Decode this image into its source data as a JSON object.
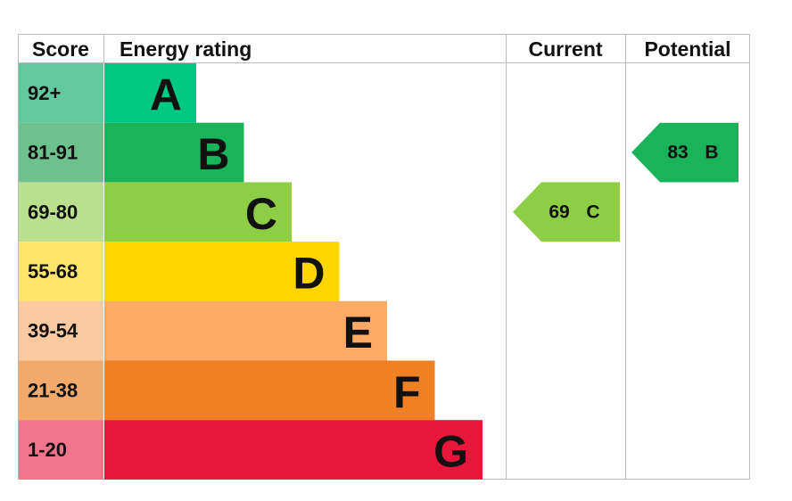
{
  "header": {
    "score": "Score",
    "rating": "Energy rating",
    "current": "Current",
    "potential": "Potential"
  },
  "rows": [
    {
      "range": "92+",
      "letter": "A",
      "color": "#00c781",
      "score_color": "#63c7a0"
    },
    {
      "range": "81-91",
      "letter": "B",
      "color": "#19b459",
      "score_color": "#6dc18c"
    },
    {
      "range": "69-80",
      "letter": "C",
      "color": "#8dce46",
      "score_color": "#b9e08f"
    },
    {
      "range": "55-68",
      "letter": "D",
      "color": "#ffd500",
      "score_color": "#ffe56b"
    },
    {
      "range": "39-54",
      "letter": "E",
      "color": "#fcaa65",
      "score_color": "#fdcaa0"
    },
    {
      "range": "21-38",
      "letter": "F",
      "color": "#ef8023",
      "score_color": "#f3a96a"
    },
    {
      "range": "1-20",
      "letter": "G",
      "color": "#e9153b",
      "score_color": "#f0758b"
    }
  ],
  "current": {
    "score": 69,
    "rating": "C"
  },
  "potential": {
    "score": 83,
    "rating": "B"
  }
}
